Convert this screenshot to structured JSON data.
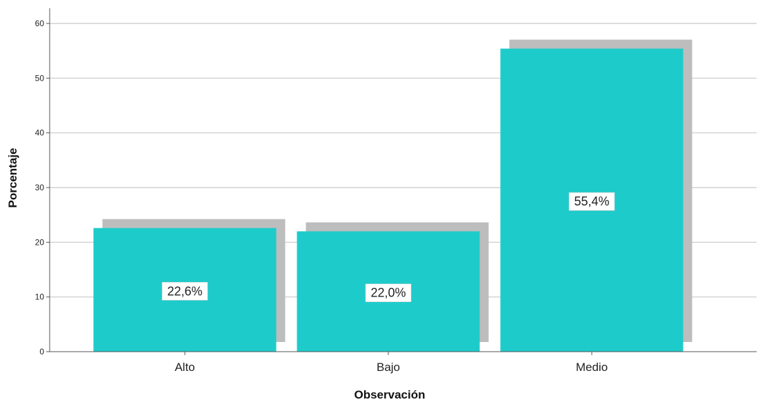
{
  "chart_data": {
    "type": "bar",
    "categories": [
      "Alto",
      "Bajo",
      "Medio"
    ],
    "values": [
      22.6,
      22.0,
      55.4
    ],
    "data_labels": [
      "22,6%",
      "22,0%",
      "55,4%"
    ],
    "xlabel": "Observación",
    "ylabel": "Porcentaje",
    "ylim": [
      0,
      60
    ],
    "yticks": [
      "0",
      "10",
      "20",
      "30",
      "40",
      "50",
      "60"
    ],
    "grid": true,
    "bar_style": "3d-shadow",
    "colors": {
      "bar": "#1ECBCB",
      "shadow": "#BDBDBD",
      "grid": "#C8C8C8",
      "axis": "#555555"
    }
  }
}
